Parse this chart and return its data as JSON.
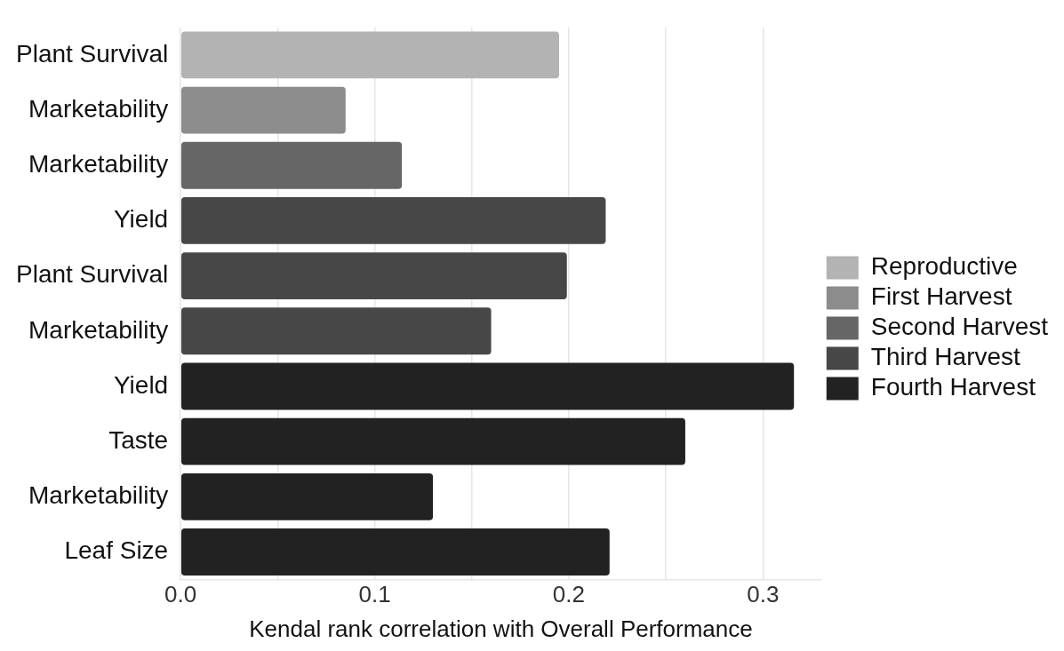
{
  "chart_data": {
    "type": "bar",
    "orientation": "horizontal",
    "xlabel": "Kendal rank correlation with Overall Performance",
    "categories": [
      "Plant Survival",
      "Marketability",
      "Marketability",
      "Yield",
      "Plant Survival",
      "Marketability",
      "Yield",
      "Taste",
      "Marketability",
      "Leaf Size"
    ],
    "series": [
      {
        "name": "Reproductive",
        "color": "#b3b3b3",
        "values": [
          0.195,
          null,
          null,
          null,
          null,
          null,
          null,
          null,
          null,
          null
        ]
      },
      {
        "name": "First Harvest",
        "color": "#8c8c8c",
        "values": [
          null,
          0.085,
          null,
          null,
          null,
          null,
          null,
          null,
          null,
          null
        ]
      },
      {
        "name": "Second Harvest",
        "color": "#666666",
        "values": [
          null,
          null,
          0.114,
          null,
          null,
          null,
          null,
          null,
          null,
          null
        ]
      },
      {
        "name": "Third Harvest",
        "color": "#474747",
        "values": [
          null,
          null,
          null,
          0.219,
          0.199,
          0.16,
          null,
          null,
          null,
          null
        ]
      },
      {
        "name": "Fourth Harvest",
        "color": "#222222",
        "values": [
          null,
          null,
          null,
          null,
          null,
          null,
          0.316,
          0.26,
          0.13,
          0.221
        ]
      }
    ],
    "xlim": [
      0,
      0.33
    ],
    "xticks": [
      {
        "value": 0,
        "label": "0.0"
      },
      {
        "value": 0.05,
        "label": null
      },
      {
        "value": 0.1,
        "label": "0.1"
      },
      {
        "value": 0.15,
        "label": null
      },
      {
        "value": 0.2,
        "label": "0.2"
      },
      {
        "value": 0.25,
        "label": null
      },
      {
        "value": 0.3,
        "label": "0.3"
      }
    ],
    "grid": "x",
    "legend": "right"
  }
}
